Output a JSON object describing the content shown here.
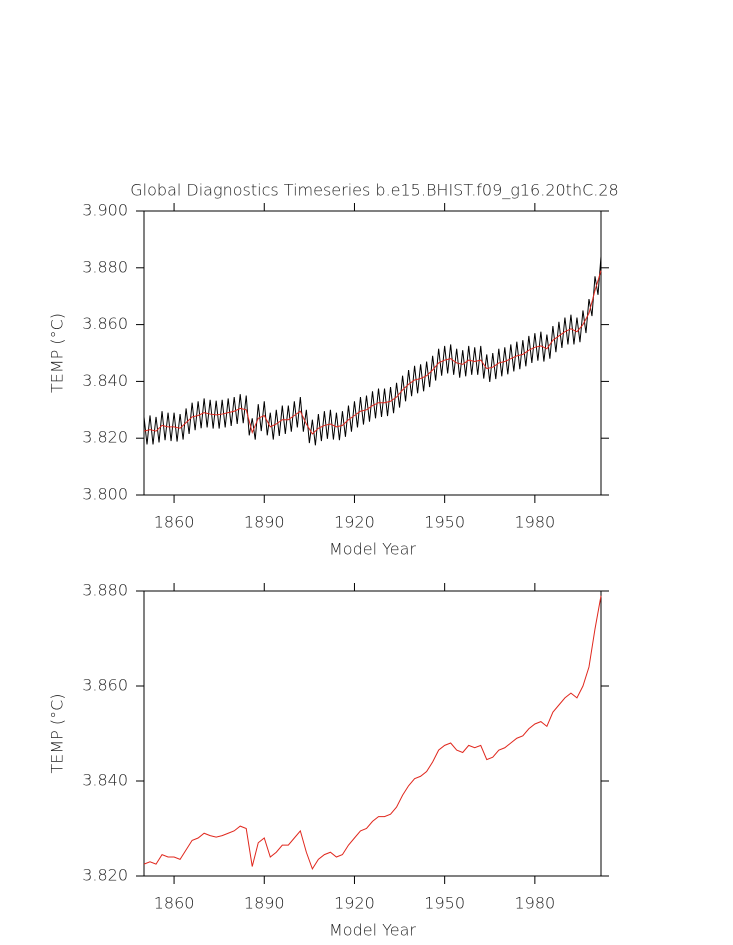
{
  "chart_data": [
    {
      "type": "line",
      "title": "Global Diagnostics Timeseries b.e15.BHIST.f09_g16.20thC.28",
      "x_label": "Model Year",
      "y_label": "TEMP (°C)",
      "xlim": [
        1850,
        2002
      ],
      "xticks": [
        1860,
        1890,
        1920,
        1950,
        1980
      ],
      "ylim": [
        3.8,
        3.9
      ],
      "yticks": [
        {
          "value": 3.8,
          "label": "3.800"
        },
        {
          "value": 3.82,
          "label": "3.820"
        },
        {
          "value": 3.84,
          "label": "3.840"
        },
        {
          "value": 3.86,
          "label": "3.860"
        },
        {
          "value": 3.88,
          "label": "3.880"
        },
        {
          "value": 3.9,
          "label": "3.900"
        }
      ],
      "series": [
        {
          "color": "#000000",
          "x": [
            1850,
            1851,
            1852,
            1853,
            1854,
            1855,
            1856,
            1857,
            1858,
            1859,
            1860,
            1861,
            1862,
            1863,
            1864,
            1865,
            1866,
            1867,
            1868,
            1869,
            1870,
            1871,
            1872,
            1873,
            1874,
            1875,
            1876,
            1877,
            1878,
            1879,
            1880,
            1881,
            1882,
            1883,
            1884,
            1885,
            1886,
            1887,
            1888,
            1889,
            1890,
            1891,
            1892,
            1893,
            1894,
            1895,
            1896,
            1897,
            1898,
            1899,
            1900,
            1901,
            1902,
            1903,
            1904,
            1905,
            1906,
            1907,
            1908,
            1909,
            1910,
            1911,
            1912,
            1913,
            1914,
            1915,
            1916,
            1917,
            1918,
            1919,
            1920,
            1921,
            1922,
            1923,
            1924,
            1925,
            1926,
            1927,
            1928,
            1929,
            1930,
            1931,
            1932,
            1933,
            1934,
            1935,
            1936,
            1937,
            1938,
            1939,
            1940,
            1941,
            1942,
            1943,
            1944,
            1945,
            1946,
            1947,
            1948,
            1949,
            1950,
            1951,
            1952,
            1953,
            1954,
            1955,
            1956,
            1957,
            1958,
            1959,
            1960,
            1961,
            1962,
            1963,
            1964,
            1965,
            1966,
            1967,
            1968,
            1969,
            1970,
            1971,
            1972,
            1973,
            1974,
            1975,
            1976,
            1977,
            1978,
            1979,
            1980,
            1981,
            1982,
            1983,
            1984,
            1985,
            1986,
            1987,
            1988,
            1989,
            1990,
            1991,
            1992,
            1993,
            1994,
            1995,
            1996,
            1997,
            1998,
            1999,
            2000,
            2001,
            2002
          ],
          "values": [
            3.8275,
            3.8178,
            3.828,
            3.8178,
            3.8275,
            3.8185,
            3.8295,
            3.8193,
            3.829,
            3.819,
            3.829,
            3.8188,
            3.8285,
            3.8195,
            3.8305,
            3.8215,
            3.8325,
            3.8228,
            3.833,
            3.8235,
            3.834,
            3.8238,
            3.8335,
            3.8234,
            3.8332,
            3.8234,
            3.8335,
            3.8238,
            3.834,
            3.8243,
            3.8345,
            3.825,
            3.8355,
            3.8253,
            3.835,
            3.821,
            3.827,
            3.8195,
            3.832,
            3.8225,
            3.833,
            3.821,
            3.829,
            3.8195,
            3.83,
            3.8208,
            3.8315,
            3.8215,
            3.8315,
            3.8223,
            3.833,
            3.8238,
            3.8345,
            3.8223,
            3.83,
            3.8183,
            3.8265,
            3.8175,
            3.8285,
            3.819,
            3.8295,
            3.8198,
            3.83,
            3.8195,
            3.829,
            3.8193,
            3.8295,
            3.8205,
            3.8315,
            3.8223,
            3.833,
            3.8238,
            3.8345,
            3.8248,
            3.835,
            3.8258,
            3.8365,
            3.827,
            3.8375,
            3.8275,
            3.8375,
            3.8278,
            3.838,
            3.8288,
            3.8395,
            3.8308,
            3.842,
            3.833,
            3.844,
            3.8348,
            3.8455,
            3.8358,
            3.846,
            3.8365,
            3.847,
            3.838,
            3.849,
            3.8403,
            3.8515,
            3.842,
            3.8525,
            3.8428,
            3.853,
            3.8423,
            3.8515,
            3.8413,
            3.851,
            3.8418,
            3.8525,
            3.8423,
            3.852,
            3.8423,
            3.8525,
            3.841,
            3.8495,
            3.8398,
            3.85,
            3.8408,
            3.8515,
            3.8418,
            3.852,
            3.8425,
            3.853,
            3.8435,
            3.854,
            3.8443,
            3.8545,
            3.8453,
            3.856,
            3.8465,
            3.857,
            3.8473,
            3.8575,
            3.847,
            3.8565,
            3.848,
            3.8595,
            3.8503,
            3.861,
            3.8518,
            3.8625,
            3.853,
            3.8635,
            3.853,
            3.8625,
            3.8538,
            3.865,
            3.857,
            3.869,
            3.863,
            3.877,
            3.8705,
            3.884
          ]
        },
        {
          "color": "#e0281e",
          "x": [
            1850,
            1852,
            1854,
            1856,
            1858,
            1860,
            1862,
            1864,
            1866,
            1868,
            1870,
            1872,
            1874,
            1876,
            1878,
            1880,
            1882,
            1884,
            1886,
            1888,
            1890,
            1892,
            1894,
            1896,
            1898,
            1900,
            1902,
            1904,
            1906,
            1908,
            1910,
            1912,
            1914,
            1916,
            1918,
            1920,
            1922,
            1924,
            1926,
            1928,
            1930,
            1932,
            1934,
            1936,
            1938,
            1940,
            1942,
            1944,
            1946,
            1948,
            1950,
            1952,
            1954,
            1956,
            1958,
            1960,
            1962,
            1964,
            1966,
            1968,
            1970,
            1972,
            1974,
            1976,
            1978,
            1980,
            1982,
            1984,
            1986,
            1988,
            1990,
            1992,
            1994,
            1996,
            1998,
            2000,
            2002
          ],
          "values": [
            3.8225,
            3.823,
            3.8225,
            3.8245,
            3.824,
            3.824,
            3.8235,
            3.8255,
            3.8275,
            3.828,
            3.829,
            3.8285,
            3.8282,
            3.8285,
            3.829,
            3.8295,
            3.8305,
            3.83,
            3.822,
            3.827,
            3.828,
            3.824,
            3.825,
            3.8265,
            3.8265,
            3.828,
            3.8295,
            3.825,
            3.8215,
            3.8235,
            3.8245,
            3.825,
            3.824,
            3.8245,
            3.8265,
            3.828,
            3.8295,
            3.83,
            3.8315,
            3.8325,
            3.8325,
            3.833,
            3.8345,
            3.837,
            3.839,
            3.8405,
            3.841,
            3.842,
            3.844,
            3.8465,
            3.8475,
            3.848,
            3.8465,
            3.846,
            3.8475,
            3.847,
            3.8475,
            3.8445,
            3.845,
            3.8465,
            3.847,
            3.848,
            3.849,
            3.8495,
            3.851,
            3.852,
            3.8525,
            3.8515,
            3.8545,
            3.856,
            3.8575,
            3.8585,
            3.8575,
            3.86,
            3.864,
            3.872,
            3.879
          ]
        }
      ]
    },
    {
      "type": "line",
      "x_label": "Model Year",
      "y_label": "TEMP (°C)",
      "xlim": [
        1850,
        2002
      ],
      "xticks": [
        1860,
        1890,
        1920,
        1950,
        1980
      ],
      "ylim": [
        3.82,
        3.88
      ],
      "yticks": [
        {
          "value": 3.82,
          "label": "3.820"
        },
        {
          "value": 3.84,
          "label": "3.840"
        },
        {
          "value": 3.86,
          "label": "3.860"
        },
        {
          "value": 3.88,
          "label": "3.880"
        }
      ],
      "series": [
        {
          "color": "#e0281e",
          "x": [
            1850,
            1852,
            1854,
            1856,
            1858,
            1860,
            1862,
            1864,
            1866,
            1868,
            1870,
            1872,
            1874,
            1876,
            1878,
            1880,
            1882,
            1884,
            1886,
            1888,
            1890,
            1892,
            1894,
            1896,
            1898,
            1900,
            1902,
            1904,
            1906,
            1908,
            1910,
            1912,
            1914,
            1916,
            1918,
            1920,
            1922,
            1924,
            1926,
            1928,
            1930,
            1932,
            1934,
            1936,
            1938,
            1940,
            1942,
            1944,
            1946,
            1948,
            1950,
            1952,
            1954,
            1956,
            1958,
            1960,
            1962,
            1964,
            1966,
            1968,
            1970,
            1972,
            1974,
            1976,
            1978,
            1980,
            1982,
            1984,
            1986,
            1988,
            1990,
            1992,
            1994,
            1996,
            1998,
            2000,
            2002
          ],
          "values": [
            3.8225,
            3.823,
            3.8225,
            3.8245,
            3.824,
            3.824,
            3.8235,
            3.8255,
            3.8275,
            3.828,
            3.829,
            3.8285,
            3.8282,
            3.8285,
            3.829,
            3.8295,
            3.8305,
            3.83,
            3.822,
            3.827,
            3.828,
            3.824,
            3.825,
            3.8265,
            3.8265,
            3.828,
            3.8295,
            3.825,
            3.8215,
            3.8235,
            3.8245,
            3.825,
            3.824,
            3.8245,
            3.8265,
            3.828,
            3.8295,
            3.83,
            3.8315,
            3.8325,
            3.8325,
            3.833,
            3.8345,
            3.837,
            3.839,
            3.8405,
            3.841,
            3.842,
            3.844,
            3.8465,
            3.8475,
            3.848,
            3.8465,
            3.846,
            3.8475,
            3.847,
            3.8475,
            3.8445,
            3.845,
            3.8465,
            3.847,
            3.848,
            3.849,
            3.8495,
            3.851,
            3.852,
            3.8525,
            3.8515,
            3.8545,
            3.856,
            3.8575,
            3.8585,
            3.8575,
            3.86,
            3.864,
            3.872,
            3.879
          ]
        }
      ]
    }
  ]
}
